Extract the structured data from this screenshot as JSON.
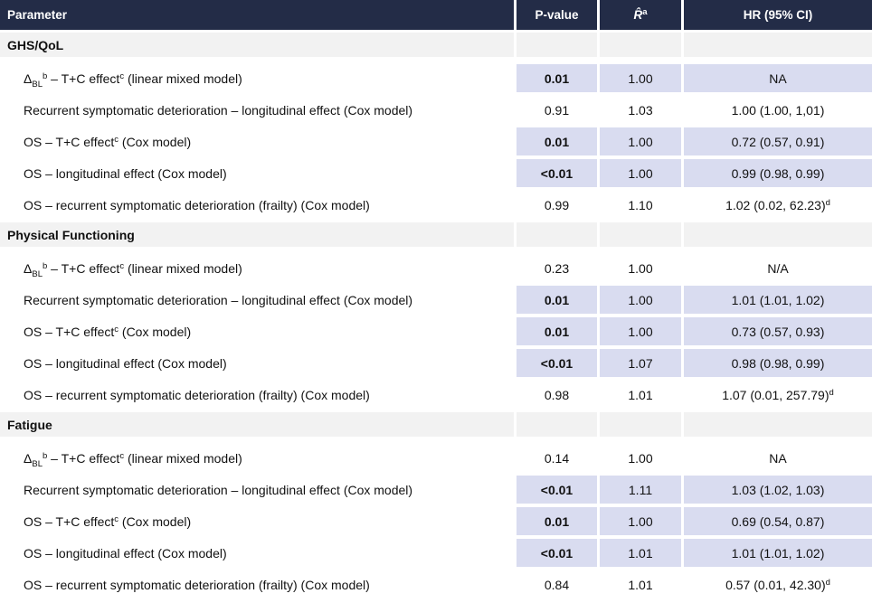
{
  "colors": {
    "header_bg": "#232c47",
    "highlight": "#d9dcf0",
    "section_bg": "#f2f2f2"
  },
  "rows": [
    {
      "type": "header",
      "cells": [
        {
          "parts": [
            {
              "t": "Parameter"
            }
          ]
        },
        {
          "parts": [
            {
              "t": "P-value"
            }
          ]
        },
        {
          "parts": [
            {
              "t": "R̂",
              "style": "ital"
            },
            {
              "t": "a",
              "style": "sup"
            }
          ]
        },
        {
          "parts": [
            {
              "t": "HR (95% CI)"
            }
          ]
        }
      ]
    },
    {
      "type": "section",
      "cells": [
        {
          "parts": [
            {
              "t": "GHS/QoL"
            }
          ]
        },
        {
          "parts": []
        },
        {
          "parts": []
        },
        {
          "parts": []
        }
      ]
    },
    {
      "type": "data",
      "highlight": true,
      "cells": [
        {
          "parts": [
            {
              "t": "Δ"
            },
            {
              "t": "BL",
              "style": "sub"
            },
            {
              "t": "b",
              "style": "sup"
            },
            {
              "t": " – T+C effect"
            },
            {
              "t": "c",
              "style": "sup"
            },
            {
              "t": " (linear mixed model)"
            }
          ]
        },
        {
          "bold": true,
          "parts": [
            {
              "t": "0.01"
            }
          ]
        },
        {
          "parts": [
            {
              "t": "1.00"
            }
          ]
        },
        {
          "parts": [
            {
              "t": "NA"
            }
          ]
        }
      ]
    },
    {
      "type": "data",
      "highlight": false,
      "cells": [
        {
          "parts": [
            {
              "t": "Recurrent symptomatic deterioration – longitudinal effect (Cox model)"
            }
          ]
        },
        {
          "parts": [
            {
              "t": "0.91"
            }
          ]
        },
        {
          "parts": [
            {
              "t": "1.03"
            }
          ]
        },
        {
          "parts": [
            {
              "t": "1.00 (1.00, 1,01)"
            }
          ]
        }
      ]
    },
    {
      "type": "data",
      "highlight": true,
      "cells": [
        {
          "parts": [
            {
              "t": "OS – T+C effect"
            },
            {
              "t": "c",
              "style": "sup"
            },
            {
              "t": " (Cox model)"
            }
          ]
        },
        {
          "bold": true,
          "parts": [
            {
              "t": "0.01"
            }
          ]
        },
        {
          "parts": [
            {
              "t": "1.00"
            }
          ]
        },
        {
          "parts": [
            {
              "t": "0.72 (0.57, 0.91)"
            }
          ]
        }
      ]
    },
    {
      "type": "data",
      "highlight": true,
      "cells": [
        {
          "parts": [
            {
              "t": "OS – longitudinal effect (Cox model)"
            }
          ]
        },
        {
          "bold": true,
          "parts": [
            {
              "t": "<0.01"
            }
          ]
        },
        {
          "parts": [
            {
              "t": "1.00"
            }
          ]
        },
        {
          "parts": [
            {
              "t": "0.99 (0.98, 0.99)"
            }
          ]
        }
      ]
    },
    {
      "type": "data",
      "highlight": false,
      "cells": [
        {
          "parts": [
            {
              "t": "OS – recurrent symptomatic deterioration (frailty) (Cox model)"
            }
          ]
        },
        {
          "parts": [
            {
              "t": "0.99"
            }
          ]
        },
        {
          "parts": [
            {
              "t": "1.10"
            }
          ]
        },
        {
          "parts": [
            {
              "t": "1.02 (0.02, 62.23)"
            },
            {
              "t": "d",
              "style": "sup"
            }
          ]
        }
      ]
    },
    {
      "type": "section",
      "cells": [
        {
          "parts": [
            {
              "t": "Physical Functioning"
            }
          ]
        },
        {
          "parts": []
        },
        {
          "parts": []
        },
        {
          "parts": []
        }
      ]
    },
    {
      "type": "data",
      "highlight": false,
      "cells": [
        {
          "parts": [
            {
              "t": "Δ"
            },
            {
              "t": "BL",
              "style": "sub"
            },
            {
              "t": "b",
              "style": "sup"
            },
            {
              "t": " – T+C effect"
            },
            {
              "t": "c",
              "style": "sup"
            },
            {
              "t": " (linear mixed model)"
            }
          ]
        },
        {
          "parts": [
            {
              "t": "0.23"
            }
          ]
        },
        {
          "parts": [
            {
              "t": "1.00"
            }
          ]
        },
        {
          "parts": [
            {
              "t": "N/A"
            }
          ]
        }
      ]
    },
    {
      "type": "data",
      "highlight": true,
      "cells": [
        {
          "parts": [
            {
              "t": "Recurrent symptomatic deterioration – longitudinal effect (Cox model)"
            }
          ]
        },
        {
          "bold": true,
          "parts": [
            {
              "t": "0.01"
            }
          ]
        },
        {
          "parts": [
            {
              "t": "1.00"
            }
          ]
        },
        {
          "parts": [
            {
              "t": "1.01 (1.01, 1.02)"
            }
          ]
        }
      ]
    },
    {
      "type": "data",
      "highlight": true,
      "cells": [
        {
          "parts": [
            {
              "t": "OS – T+C effect"
            },
            {
              "t": "c",
              "style": "sup"
            },
            {
              "t": " (Cox model)"
            }
          ]
        },
        {
          "bold": true,
          "parts": [
            {
              "t": "0.01"
            }
          ]
        },
        {
          "parts": [
            {
              "t": "1.00"
            }
          ]
        },
        {
          "parts": [
            {
              "t": "0.73 (0.57, 0.93)"
            }
          ]
        }
      ]
    },
    {
      "type": "data",
      "highlight": true,
      "cells": [
        {
          "parts": [
            {
              "t": "OS – longitudinal effect (Cox model)"
            }
          ]
        },
        {
          "bold": true,
          "parts": [
            {
              "t": "<0.01"
            }
          ]
        },
        {
          "parts": [
            {
              "t": "1.07"
            }
          ]
        },
        {
          "parts": [
            {
              "t": "0.98 (0.98, 0.99)"
            }
          ]
        }
      ]
    },
    {
      "type": "data",
      "highlight": false,
      "cells": [
        {
          "parts": [
            {
              "t": "OS – recurrent symptomatic deterioration (frailty) (Cox model)"
            }
          ]
        },
        {
          "parts": [
            {
              "t": "0.98"
            }
          ]
        },
        {
          "parts": [
            {
              "t": "1.01"
            }
          ]
        },
        {
          "parts": [
            {
              "t": "1.07 (0.01, 257.79)"
            },
            {
              "t": "d",
              "style": "sup"
            }
          ]
        }
      ]
    },
    {
      "type": "section",
      "cells": [
        {
          "parts": [
            {
              "t": "Fatigue"
            }
          ]
        },
        {
          "parts": []
        },
        {
          "parts": []
        },
        {
          "parts": []
        }
      ]
    },
    {
      "type": "data",
      "highlight": false,
      "cells": [
        {
          "parts": [
            {
              "t": "Δ"
            },
            {
              "t": "BL",
              "style": "sub"
            },
            {
              "t": "b",
              "style": "sup"
            },
            {
              "t": " – T+C effect"
            },
            {
              "t": "c",
              "style": "sup"
            },
            {
              "t": " (linear mixed model)"
            }
          ]
        },
        {
          "parts": [
            {
              "t": "0.14"
            }
          ]
        },
        {
          "parts": [
            {
              "t": "1.00"
            }
          ]
        },
        {
          "parts": [
            {
              "t": "NA"
            }
          ]
        }
      ]
    },
    {
      "type": "data",
      "highlight": true,
      "cells": [
        {
          "parts": [
            {
              "t": "Recurrent symptomatic deterioration – longitudinal effect (Cox model)"
            }
          ]
        },
        {
          "bold": true,
          "parts": [
            {
              "t": "<0.01"
            }
          ]
        },
        {
          "parts": [
            {
              "t": "1.11"
            }
          ]
        },
        {
          "parts": [
            {
              "t": "1.03 (1.02, 1.03)"
            }
          ]
        }
      ]
    },
    {
      "type": "data",
      "highlight": true,
      "cells": [
        {
          "parts": [
            {
              "t": "OS – T+C effect"
            },
            {
              "t": "c",
              "style": "sup"
            },
            {
              "t": " (Cox model)"
            }
          ]
        },
        {
          "bold": true,
          "parts": [
            {
              "t": "0.01"
            }
          ]
        },
        {
          "parts": [
            {
              "t": "1.00"
            }
          ]
        },
        {
          "parts": [
            {
              "t": "0.69 (0.54, 0.87)"
            }
          ]
        }
      ]
    },
    {
      "type": "data",
      "highlight": true,
      "cells": [
        {
          "parts": [
            {
              "t": "OS – longitudinal effect (Cox model)"
            }
          ]
        },
        {
          "bold": true,
          "parts": [
            {
              "t": "<0.01"
            }
          ]
        },
        {
          "parts": [
            {
              "t": "1.01"
            }
          ]
        },
        {
          "parts": [
            {
              "t": "1.01 (1.01, 1.02)"
            }
          ]
        }
      ]
    },
    {
      "type": "data",
      "highlight": false,
      "cells": [
        {
          "parts": [
            {
              "t": "OS – recurrent symptomatic deterioration (frailty) (Cox model)"
            }
          ]
        },
        {
          "parts": [
            {
              "t": "0.84"
            }
          ]
        },
        {
          "parts": [
            {
              "t": "1.01"
            }
          ]
        },
        {
          "parts": [
            {
              "t": "0.57 (0.01, 42.30)"
            },
            {
              "t": "d",
              "style": "sup"
            }
          ]
        }
      ]
    }
  ]
}
